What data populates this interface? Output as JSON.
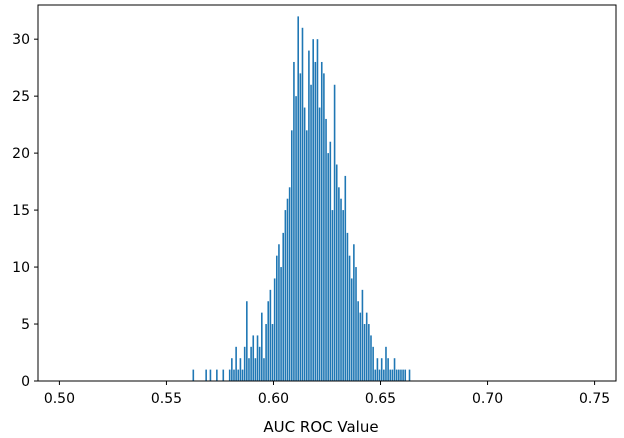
{
  "chart_data": {
    "type": "bar",
    "title": "",
    "xlabel": "AUC ROC Value",
    "ylabel": "",
    "xlim": [
      0.49,
      0.76
    ],
    "ylim": [
      0,
      33
    ],
    "grid": false,
    "bar_color": "#1f77b4",
    "x_ticks": [
      {
        "value": 0.5,
        "label": "0.50"
      },
      {
        "value": 0.55,
        "label": "0.55"
      },
      {
        "value": 0.6,
        "label": "0.60"
      },
      {
        "value": 0.65,
        "label": "0.65"
      },
      {
        "value": 0.7,
        "label": "0.70"
      },
      {
        "value": 0.75,
        "label": "0.75"
      }
    ],
    "y_ticks": [
      {
        "value": 0,
        "label": "0"
      },
      {
        "value": 5,
        "label": "5"
      },
      {
        "value": 10,
        "label": "10"
      },
      {
        "value": 15,
        "label": "15"
      },
      {
        "value": 20,
        "label": "20"
      },
      {
        "value": 25,
        "label": "25"
      },
      {
        "value": 30,
        "label": "30"
      }
    ],
    "bin_width": 0.00065,
    "x": [
      0.5625,
      0.5685,
      0.5705,
      0.5735,
      0.5765,
      0.5795,
      0.5805,
      0.5815,
      0.5825,
      0.5835,
      0.5845,
      0.5855,
      0.5865,
      0.5875,
      0.5885,
      0.5895,
      0.5905,
      0.5915,
      0.5925,
      0.5935,
      0.5945,
      0.5955,
      0.5965,
      0.5975,
      0.5985,
      0.5995,
      0.6005,
      0.6015,
      0.6025,
      0.6035,
      0.6045,
      0.6055,
      0.6065,
      0.6075,
      0.6085,
      0.6095,
      0.6105,
      0.6115,
      0.6125,
      0.6135,
      0.6145,
      0.6155,
      0.6165,
      0.6175,
      0.6185,
      0.6195,
      0.6205,
      0.6215,
      0.6225,
      0.6235,
      0.6245,
      0.6255,
      0.6265,
      0.6275,
      0.6285,
      0.6295,
      0.6305,
      0.6315,
      0.6325,
      0.6335,
      0.6345,
      0.6355,
      0.6365,
      0.6375,
      0.6385,
      0.6395,
      0.6405,
      0.6415,
      0.6425,
      0.6435,
      0.6445,
      0.6455,
      0.6465,
      0.6475,
      0.6485,
      0.6495,
      0.6505,
      0.6515,
      0.6525,
      0.6535,
      0.6545,
      0.6555,
      0.6565,
      0.6575,
      0.6585,
      0.6595,
      0.6605,
      0.6615,
      0.6635
    ],
    "values": [
      1,
      1,
      1,
      1,
      1,
      1,
      2,
      1,
      3,
      1,
      2,
      1,
      3,
      7,
      2,
      3,
      4,
      2,
      4,
      3,
      6,
      2,
      5,
      7,
      8,
      5,
      9,
      11,
      12,
      10,
      13,
      15,
      16,
      17,
      22,
      28,
      25,
      32,
      27,
      31,
      24,
      22,
      29,
      26,
      30,
      28,
      30,
      24,
      28,
      27,
      23,
      20,
      21,
      15,
      26,
      19,
      17,
      16,
      15,
      18,
      13,
      11,
      9,
      12,
      10,
      7,
      6,
      8,
      5,
      6,
      5,
      4,
      3,
      1,
      2,
      1,
      2,
      1,
      3,
      2,
      1,
      1,
      2,
      1,
      1,
      1,
      1,
      1,
      1
    ]
  }
}
